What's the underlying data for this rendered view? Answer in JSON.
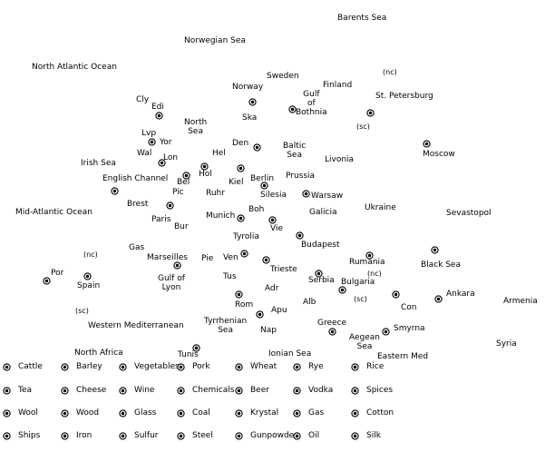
{
  "map": {
    "labels": [
      "Barents Sea",
      "Norwegian Sea",
      "North Atlantic Ocean",
      "Norway",
      "Sweden",
      "Finland",
      "(nc)",
      "St. Petersburg",
      "Gulf\nof\nBothnia",
      "Cly",
      "Edi",
      "North\nSea",
      "Ska",
      "(sc)",
      "Lvp",
      "Yor",
      "Den",
      "Baltic\nSea",
      "Moscow",
      "Wal",
      "Lon",
      "Hel",
      "Irish Sea",
      "Livonia",
      "Hol",
      "English Channel",
      "Bel",
      "Kiel",
      "Berlin",
      "Prussia",
      "Pic",
      "Ruhr",
      "Silesia",
      "Warsaw",
      "Brest",
      "Ukraine",
      "Mid-Atlantic Ocean",
      "Boh",
      "Galicia",
      "Sevastopol",
      "Paris",
      "Munich",
      "Bur",
      "Vie",
      "Tyrolia",
      "Budapest",
      "Gas",
      "(nc)",
      "Marseilles",
      "Pie",
      "Ven",
      "Rumania",
      "Black Sea",
      "Trieste",
      "Por",
      "Gulf of\nLyon",
      "Tus",
      "Serbia",
      "(nc)",
      "Spain",
      "Bulgaria",
      "Ankara",
      "Adr",
      "(sc)",
      "Armenia",
      "Alb",
      "Con",
      "Rom",
      "(sc)",
      "Apu",
      "Tyrrhenian\nSea",
      "Greece",
      "Western Mediterranean",
      "Nap",
      "Smyrna",
      "Aegean\nSea",
      "Syria",
      "North Africa",
      "Ionian Sea",
      "Eastern Med",
      "Tunis"
    ],
    "supply_center_count": 34
  },
  "legend": {
    "items": [
      "Cattle",
      "Barley",
      "Vegetables",
      "Pork",
      "Wheat",
      "Rye",
      "Rice",
      "Tea",
      "Cheese",
      "Wine",
      "Chemicals",
      "Beer",
      "Vodka",
      "Spices",
      "Wool",
      "Wood",
      "Glass",
      "Coal",
      "Krystal",
      "Gas",
      "Cotton",
      "Ships",
      "Iron",
      "Sulfur",
      "Steel",
      "Gunpowder",
      "Oil",
      "Silk"
    ]
  }
}
